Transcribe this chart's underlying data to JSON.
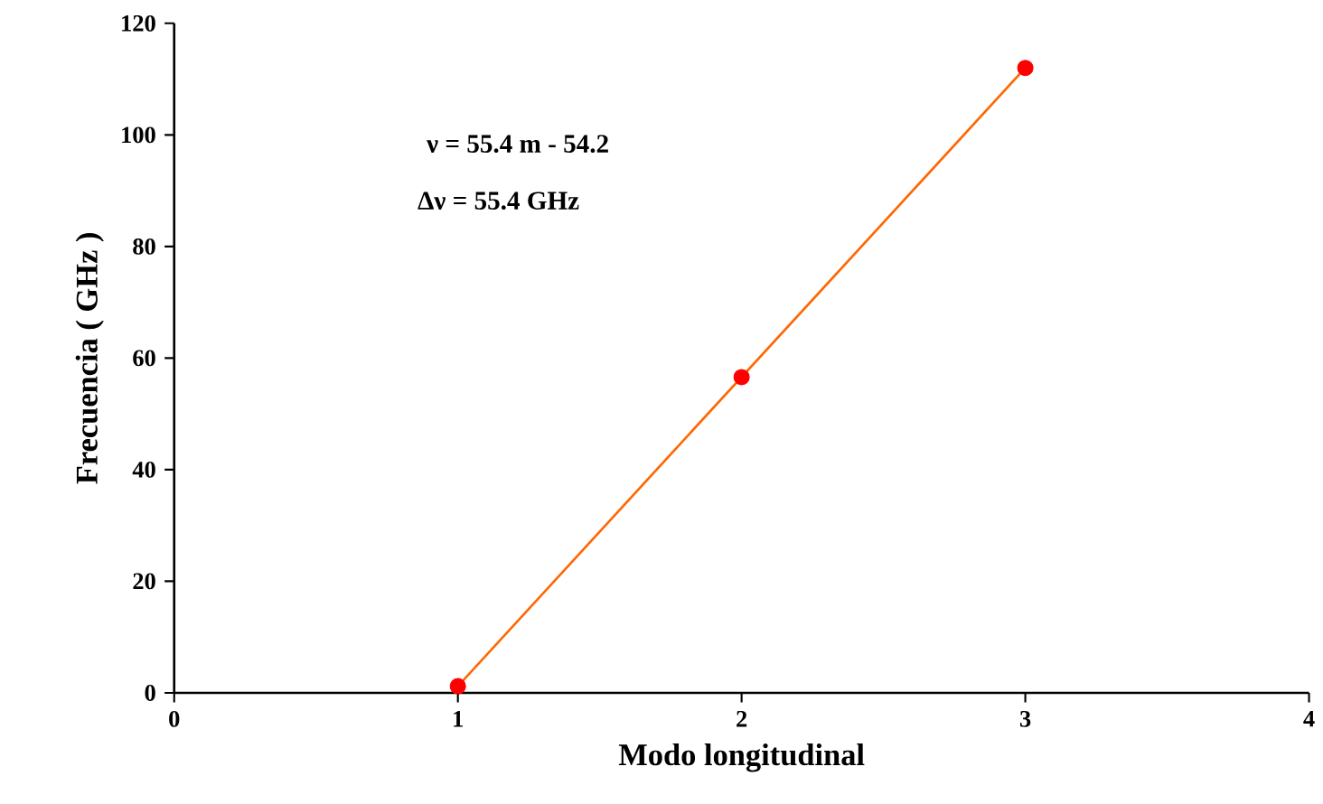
{
  "chart_data": {
    "type": "line",
    "xlabel": "Modo longitudinal",
    "ylabel": "Frecuencia ( GHz )",
    "annotations": [
      "ν = 55.4 m - 54.2",
      "Δν = 55.4 GHz"
    ],
    "series": [
      {
        "color": "#ff6600",
        "x": [
          1,
          2,
          3
        ],
        "values": [
          1.2,
          56.6,
          112
        ],
        "marker": "none"
      },
      {
        "type": "scatter",
        "color": "#ff0000",
        "x": [
          1,
          2,
          3
        ],
        "values": [
          1.2,
          56.6,
          112
        ],
        "marker": "circle"
      }
    ],
    "xlim": [
      0,
      4
    ],
    "ylim": [
      0,
      120
    ],
    "xticks": [
      0,
      1,
      2,
      3,
      4
    ],
    "yticks": [
      0,
      20,
      40,
      60,
      80,
      100,
      120
    ]
  }
}
